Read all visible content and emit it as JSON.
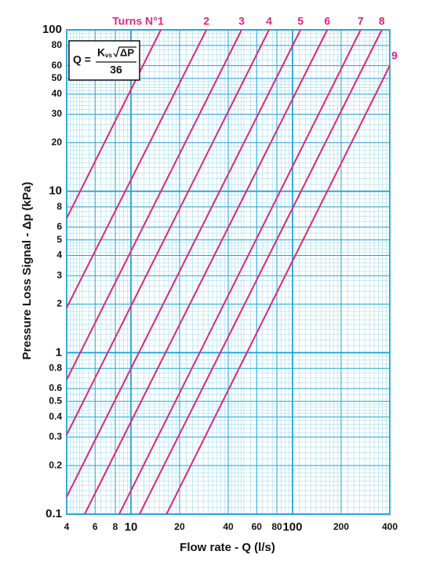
{
  "chart_data": {
    "type": "line",
    "legend_title": "Turns N°",
    "x_label": "Flow rate - Q (l/s)",
    "y_label": "Pressure Loss Signal  - Δp (kPa)",
    "formula": {
      "lhs": "Q =",
      "k": "K",
      "subscript": "vs",
      "radicand": "ΔP",
      "denominator": "36"
    },
    "log_x": true,
    "log_y": true,
    "grid": true,
    "color": "#e0267a",
    "xlim": [
      4,
      400
    ],
    "ylim": [
      0.1,
      100
    ],
    "xticks": [
      4,
      6,
      8,
      10,
      20,
      40,
      60,
      80,
      100,
      200,
      400
    ],
    "yticks": [
      0.1,
      0.2,
      0.3,
      0.4,
      0.5,
      0.6,
      0.8,
      1,
      2,
      3,
      4,
      5,
      6,
      8,
      10,
      20,
      30,
      40,
      50,
      60,
      80,
      100
    ],
    "series": [
      {
        "name": "1",
        "x": [
          4,
          15.3
        ],
        "values": [
          6.8,
          100
        ]
      },
      {
        "name": "2",
        "x": [
          4,
          29.3
        ],
        "values": [
          1.9,
          100
        ]
      },
      {
        "name": "3",
        "x": [
          4,
          48.4
        ],
        "values": [
          0.68,
          100
        ]
      },
      {
        "name": "4",
        "x": [
          4,
          71.5
        ],
        "values": [
          0.31,
          100
        ]
      },
      {
        "name": "5",
        "x": [
          4,
          112
        ],
        "values": [
          0.128,
          100
        ]
      },
      {
        "name": "6",
        "x": [
          5.17,
          164
        ],
        "values": [
          0.1,
          100
        ]
      },
      {
        "name": "7",
        "x": [
          8.46,
          264
        ],
        "values": [
          0.1,
          100
        ]
      },
      {
        "name": "8",
        "x": [
          11.3,
          357
        ],
        "values": [
          0.1,
          100
        ]
      },
      {
        "name": "9",
        "x": [
          16.6,
          400
        ],
        "values": [
          0.1,
          60
        ]
      }
    ]
  }
}
